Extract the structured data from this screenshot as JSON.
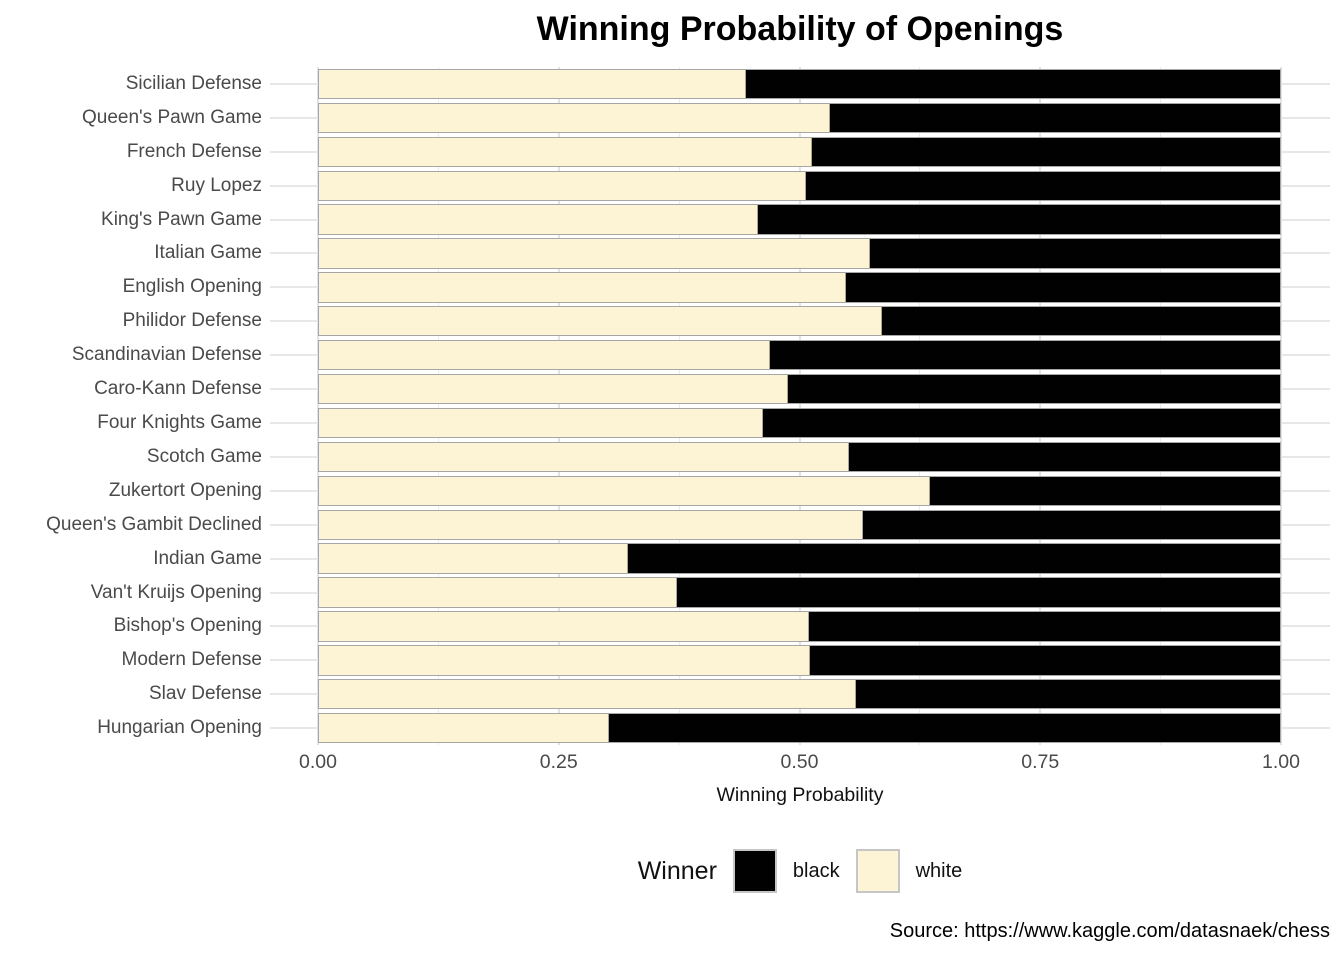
{
  "title": "Winning Probability of Openings",
  "source": "Source: https://www.kaggle.com/datasnaek/chess",
  "colors": {
    "white_bar": "#FCF4D4",
    "black_bar": "#010101",
    "bar_border": "#A6A6A6",
    "gridline": "#E6E6E6",
    "axis_text": "#4A4A4A",
    "legend_swatch_border": "#C6C6C6"
  },
  "chart_data": {
    "type": "bar",
    "orientation": "horizontal",
    "stacked": true,
    "title": "Winning Probability of Openings",
    "xlabel": "Winning Probability",
    "ylabel": "",
    "xlim": [
      0,
      1
    ],
    "x_ticks": [
      0,
      0.25,
      0.5,
      0.75,
      1
    ],
    "x_tick_labels": [
      "0.00",
      "0.25",
      "0.50",
      "0.75",
      "1.00"
    ],
    "x_minor_ticks": [
      0.125,
      0.375,
      0.625,
      0.875
    ],
    "grid": true,
    "legend": {
      "title": "Winner",
      "position": "bottom",
      "entries": [
        {
          "label": "black",
          "color": "#010101"
        },
        {
          "label": "white",
          "color": "#FCF4D4"
        }
      ]
    },
    "categories": [
      "Sicilian Defense",
      "Queen's Pawn Game",
      "French Defense",
      "Ruy Lopez",
      "King's Pawn Game",
      "Italian Game",
      "English Opening",
      "Philidor Defense",
      "Scandinavian Defense",
      "Caro-Kann Defense",
      "Four Knights Game",
      "Scotch Game",
      "Zukertort Opening",
      "Queen's Gambit Declined",
      "Indian Game",
      "Van't Kruijs Opening",
      "Bishop's Opening",
      "Modern Defense",
      "Slav Defense",
      "Hungarian Opening"
    ],
    "series": [
      {
        "name": "white",
        "color": "#FCF4D4",
        "values": [
          0.445,
          0.532,
          0.514,
          0.507,
          0.457,
          0.574,
          0.549,
          0.586,
          0.47,
          0.489,
          0.463,
          0.552,
          0.636,
          0.566,
          0.322,
          0.373,
          0.51,
          0.511,
          0.559,
          0.303
        ]
      },
      {
        "name": "black",
        "color": "#010101",
        "values": [
          0.555,
          0.468,
          0.486,
          0.493,
          0.543,
          0.426,
          0.451,
          0.414,
          0.53,
          0.511,
          0.537,
          0.448,
          0.364,
          0.434,
          0.678,
          0.627,
          0.49,
          0.489,
          0.441,
          0.697
        ]
      }
    ]
  }
}
